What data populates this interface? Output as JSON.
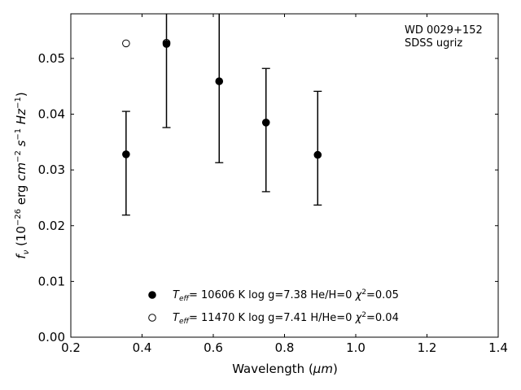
{
  "chart_data": {
    "type": "scatter",
    "title": "",
    "xlabel_main": "Wavelength (",
    "xlabel_unit": "μm",
    "xlabel_tail": ")",
    "ylabel_f": "f",
    "ylabel_nu": "ν",
    "ylabel_mid": " (10",
    "ylabel_exp1": "−26",
    "ylabel_erg": " erg ",
    "ylabel_cm": "cm",
    "ylabel_exp2": "−2",
    "ylabel_s": " s",
    "ylabel_exp3": "−1",
    "ylabel_hz": " Hz",
    "ylabel_exp4": "−1",
    "ylabel_close": ")",
    "xlim": [
      0.2,
      1.4
    ],
    "ylim": [
      0.0,
      0.058
    ],
    "xticks": [
      0.2,
      0.4,
      0.6,
      0.8,
      1.0,
      1.2,
      1.4
    ],
    "xtick_labels": [
      "0.2",
      "0.4",
      "0.6",
      "0.8",
      "1.0",
      "1.2",
      "1.4"
    ],
    "yticks": [
      0.0,
      0.01,
      0.02,
      0.03,
      0.04,
      0.05
    ],
    "ytick_labels": [
      "0.00",
      "0.01",
      "0.02",
      "0.03",
      "0.04",
      "0.05"
    ],
    "annotation_lines": [
      "WD 0029+152",
      "SDSS ugriz"
    ],
    "observed": {
      "x": [
        0.3551,
        0.4686,
        0.6166,
        0.748,
        0.8932
      ],
      "y": [
        0.0328,
        0.0525,
        0.0459,
        0.0384,
        0.0326
      ],
      "yerr_low": [
        0.0219,
        0.0376,
        0.0313,
        0.0261,
        0.0237
      ],
      "yerr_high": [
        0.0405,
        0.0585,
        0.0585,
        0.0482,
        0.0441
      ]
    },
    "series": [
      {
        "name_T": "T",
        "name_eff": "eff",
        "name_rest": "= 10606 K  log g=7.38  He/H=0  ",
        "name_chi": "χ",
        "name_chi_exp": "2",
        "name_chi_val": "=0.05",
        "marker": "filled",
        "x": [
          0.3551,
          0.4686,
          0.6166,
          0.748,
          0.8932
        ],
        "y": [
          0.0328,
          0.0526,
          0.0459,
          0.0385,
          0.0327
        ]
      },
      {
        "name_T": "T",
        "name_eff": "eff",
        "name_rest": "= 11470 K  log g=7.41  H/He=0  ",
        "name_chi": "χ",
        "name_chi_exp": "2",
        "name_chi_val": "=0.04",
        "marker": "open",
        "x": [
          0.3551,
          0.4686
        ],
        "y": [
          0.0527,
          0.0528
        ]
      }
    ],
    "legend_position": "bottom-center",
    "grid": false,
    "colors": {
      "marker": "#000000",
      "axis": "#000000",
      "background": "#ffffff"
    }
  }
}
